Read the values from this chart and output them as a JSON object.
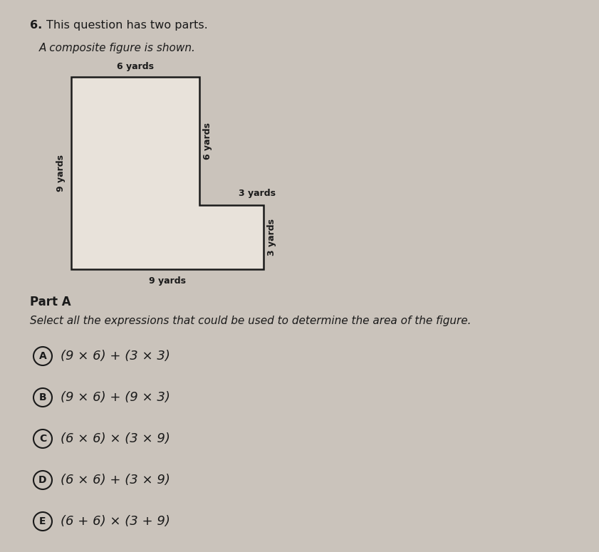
{
  "title_number": "6.",
  "title_text": "This question has two parts.",
  "subtitle": "A composite figure is shown.",
  "bg_color": "#cac3bb",
  "text_color": "#1a1a1a",
  "shape_facecolor": "#e8e2da",
  "shape_edgecolor": "#1a1a1a",
  "dim_top": "6 yards",
  "dim_left": "9 yards",
  "dim_right_top": "6 yards",
  "dim_middle": "3 yards",
  "dim_right_bottom": "3 yards",
  "dim_bottom": "9 yards",
  "part_label": "Part A",
  "part_instruction": "Select all the expressions that could be used to determine the area of the figure.",
  "options": [
    {
      "letter": "A",
      "text": "(9 × 6) + (3 × 3)"
    },
    {
      "letter": "B",
      "text": "(9 × 6) + (9 × 3)"
    },
    {
      "letter": "C",
      "text": "(6 × 6) × (3 × 9)"
    },
    {
      "letter": "D",
      "text": "(6 × 6) + (3 × 9)"
    },
    {
      "letter": "E",
      "text": "(6 + 6) × (3 + 9)"
    }
  ]
}
